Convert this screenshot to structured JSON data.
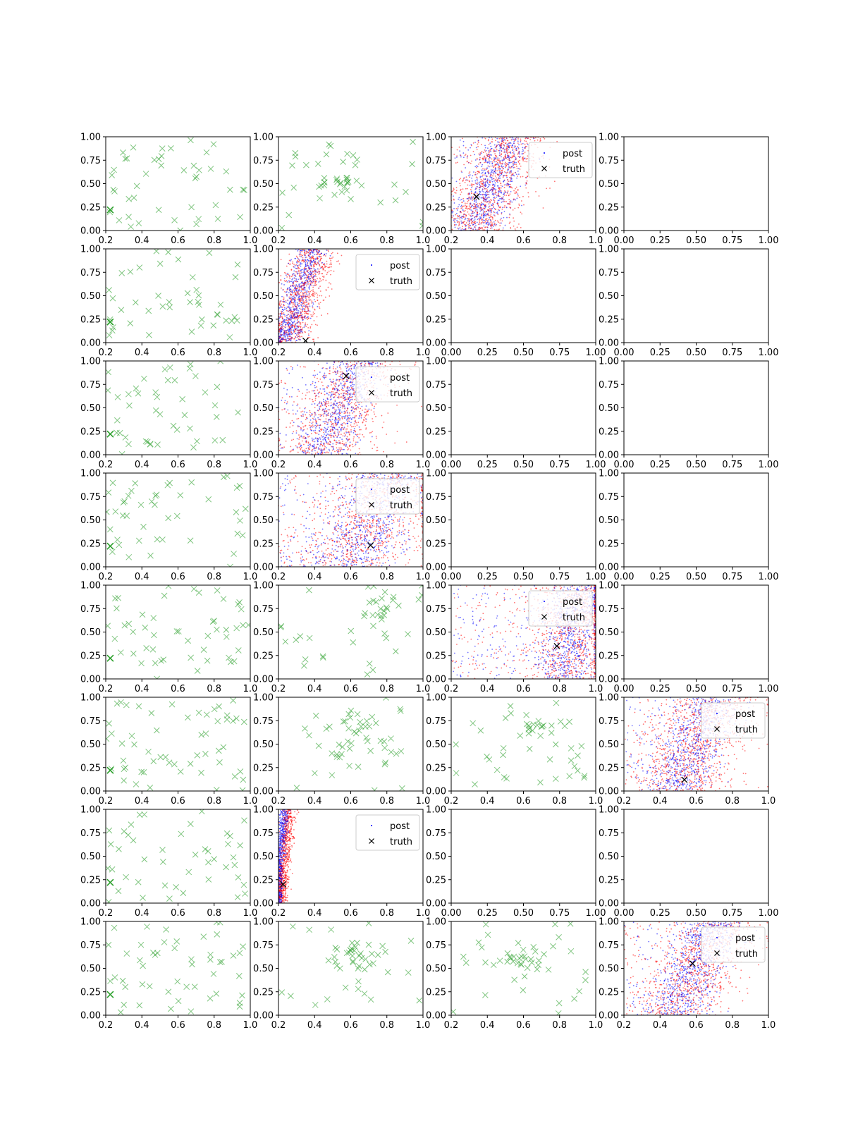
{
  "figure": {
    "rows": 8,
    "cols": 4
  },
  "colors": {
    "scatter": "#2ca02c",
    "post_a": "#ff0000",
    "post_b": "#0000ff",
    "truth": "#000000",
    "axis": "#000000"
  },
  "legend": {
    "labels": [
      "post",
      "truth"
    ]
  },
  "chart_data": [
    {
      "row": 0,
      "col": 0,
      "type": "scatter",
      "kind": "scatter",
      "xlim": [
        0.2,
        1.0
      ],
      "ylim": [
        0,
        1
      ],
      "xticks": [
        "0.2",
        "0.4",
        "0.6",
        "0.8",
        "1.0"
      ],
      "yticks": [
        "0.00",
        "0.25",
        "0.50",
        "0.75",
        "1.00"
      ],
      "seed": 101,
      "n": 45,
      "cluster": null,
      "truth": {
        "x": 0.225,
        "y": 0.22
      }
    },
    {
      "row": 0,
      "col": 1,
      "type": "scatter",
      "kind": "scatter",
      "xlim": [
        0.2,
        1.0
      ],
      "ylim": [
        0,
        1
      ],
      "xticks": [
        "0.2",
        "0.4",
        "0.6",
        "0.8",
        "1.0"
      ],
      "yticks": [
        "0.00",
        "0.25",
        "0.50",
        "0.75",
        "1.00"
      ],
      "seed": 102,
      "n": 50,
      "cluster": {
        "x": 0.52,
        "y": 0.5,
        "sx": 0.06,
        "sy": 0.05,
        "frac": 0.5
      },
      "truth": null
    },
    {
      "row": 0,
      "col": 2,
      "type": "scatter",
      "kind": "posterior",
      "xlim": [
        0.2,
        1.0
      ],
      "ylim": [
        0,
        1
      ],
      "xticks": [
        "0.2",
        "0.4",
        "0.6",
        "0.8",
        "1.0"
      ],
      "yticks": [
        "0.00",
        "0.25",
        "0.50",
        "0.75",
        "1.00"
      ],
      "seed": 103,
      "n": 1600,
      "band": {
        "base": 0.44,
        "slope": 0.2,
        "spread": 0.16,
        "outlier": 0.1
      },
      "truth": {
        "x": 0.34,
        "y": 0.36
      },
      "legend": "upper-right"
    },
    {
      "row": 0,
      "col": 3,
      "type": "scatter",
      "kind": "empty",
      "xlim": [
        0,
        1
      ],
      "ylim": [
        0,
        1
      ],
      "xticks": [
        "0.00",
        "0.25",
        "0.50",
        "0.75",
        "1.00"
      ],
      "yticks": [
        "0.00",
        "0.25",
        "0.50",
        "0.75",
        "1.00"
      ]
    },
    {
      "row": 1,
      "col": 0,
      "type": "scatter",
      "kind": "scatter",
      "xlim": [
        0.2,
        1.0
      ],
      "ylim": [
        0,
        1
      ],
      "xticks": [
        "0.2",
        "0.4",
        "0.6",
        "0.8",
        "1.0"
      ],
      "yticks": [
        "0.00",
        "0.25",
        "0.50",
        "0.75",
        "1.00"
      ],
      "seed": 201,
      "n": 45,
      "cluster": null,
      "truth": {
        "x": 0.225,
        "y": 0.22
      }
    },
    {
      "row": 1,
      "col": 1,
      "type": "scatter",
      "kind": "posterior",
      "xlim": [
        0.2,
        1.0
      ],
      "ylim": [
        0,
        1
      ],
      "xticks": [
        "0.2",
        "0.4",
        "0.6",
        "0.8",
        "1.0"
      ],
      "yticks": [
        "0.00",
        "0.25",
        "0.50",
        "0.75",
        "1.00"
      ],
      "seed": 202,
      "n": 1500,
      "band": {
        "base": 0.32,
        "slope": 0.16,
        "spread": 0.1,
        "outlier": 0.02
      },
      "truth": {
        "x": 0.35,
        "y": 0.02
      },
      "legend": "upper-right"
    },
    {
      "row": 1,
      "col": 2,
      "type": "scatter",
      "kind": "empty",
      "xlim": [
        0,
        1
      ],
      "ylim": [
        0,
        1
      ],
      "xticks": [
        "0.00",
        "0.25",
        "0.50",
        "0.75",
        "1.00"
      ],
      "yticks": [
        "0.00",
        "0.25",
        "0.50",
        "0.75",
        "1.00"
      ]
    },
    {
      "row": 1,
      "col": 3,
      "type": "scatter",
      "kind": "empty",
      "xlim": [
        0,
        1
      ],
      "ylim": [
        0,
        1
      ],
      "xticks": [
        "0.00",
        "0.25",
        "0.50",
        "0.75",
        "1.00"
      ],
      "yticks": [
        "0.00",
        "0.25",
        "0.50",
        "0.75",
        "1.00"
      ]
    },
    {
      "row": 2,
      "col": 0,
      "type": "scatter",
      "kind": "scatter",
      "xlim": [
        0.2,
        1.0
      ],
      "ylim": [
        0,
        1
      ],
      "xticks": [
        "0.2",
        "0.4",
        "0.6",
        "0.8",
        "1.0"
      ],
      "yticks": [
        "0.00",
        "0.25",
        "0.50",
        "0.75",
        "1.00"
      ],
      "seed": 301,
      "n": 45,
      "cluster": null,
      "truth": {
        "x": 0.225,
        "y": 0.22
      }
    },
    {
      "row": 2,
      "col": 1,
      "type": "scatter",
      "kind": "posterior",
      "xlim": [
        0.2,
        1.0
      ],
      "ylim": [
        0,
        1
      ],
      "xticks": [
        "0.2",
        "0.4",
        "0.6",
        "0.8",
        "1.0"
      ],
      "yticks": [
        "0.00",
        "0.25",
        "0.50",
        "0.75",
        "1.00"
      ],
      "seed": 302,
      "n": 1500,
      "band": {
        "base": 0.55,
        "slope": 0.2,
        "spread": 0.2,
        "outlier": 0.12
      },
      "truth": {
        "x": 0.575,
        "y": 0.84
      },
      "legend": "upper-right"
    },
    {
      "row": 2,
      "col": 2,
      "type": "scatter",
      "kind": "empty",
      "xlim": [
        0,
        1
      ],
      "ylim": [
        0,
        1
      ],
      "xticks": [
        "0.00",
        "0.25",
        "0.50",
        "0.75",
        "1.00"
      ],
      "yticks": [
        "0.00",
        "0.25",
        "0.50",
        "0.75",
        "1.00"
      ]
    },
    {
      "row": 2,
      "col": 3,
      "type": "scatter",
      "kind": "empty",
      "xlim": [
        0,
        1
      ],
      "ylim": [
        0,
        1
      ],
      "xticks": [
        "0.00",
        "0.25",
        "0.50",
        "0.75",
        "1.00"
      ],
      "yticks": [
        "0.00",
        "0.25",
        "0.50",
        "0.75",
        "1.00"
      ]
    },
    {
      "row": 3,
      "col": 0,
      "type": "scatter",
      "kind": "scatter",
      "xlim": [
        0.2,
        1.0
      ],
      "ylim": [
        0,
        1
      ],
      "xticks": [
        "0.2",
        "0.4",
        "0.6",
        "0.8",
        "1.0"
      ],
      "yticks": [
        "0.00",
        "0.25",
        "0.50",
        "0.75",
        "1.00"
      ],
      "seed": 401,
      "n": 45,
      "cluster": null,
      "truth": {
        "x": 0.225,
        "y": 0.22
      }
    },
    {
      "row": 3,
      "col": 1,
      "type": "scatter",
      "kind": "posterior",
      "xlim": [
        0.2,
        1.0
      ],
      "ylim": [
        0,
        1
      ],
      "xticks": [
        "0.2",
        "0.4",
        "0.6",
        "0.8",
        "1.0"
      ],
      "yticks": [
        "0.00",
        "0.25",
        "0.50",
        "0.75",
        "1.00"
      ],
      "seed": 402,
      "n": 1600,
      "band": {
        "base": 0.72,
        "slope": 0.22,
        "spread": 0.26,
        "outlier": 0.18
      },
      "truth": {
        "x": 0.71,
        "y": 0.23
      },
      "legend": "upper-right"
    },
    {
      "row": 3,
      "col": 2,
      "type": "scatter",
      "kind": "empty",
      "xlim": [
        0,
        1
      ],
      "ylim": [
        0,
        1
      ],
      "xticks": [
        "0.00",
        "0.25",
        "0.50",
        "0.75",
        "1.00"
      ],
      "yticks": [
        "0.00",
        "0.25",
        "0.50",
        "0.75",
        "1.00"
      ]
    },
    {
      "row": 3,
      "col": 3,
      "type": "scatter",
      "kind": "empty",
      "xlim": [
        0,
        1
      ],
      "ylim": [
        0,
        1
      ],
      "xticks": [
        "0.00",
        "0.25",
        "0.50",
        "0.75",
        "1.00"
      ],
      "yticks": [
        "0.00",
        "0.25",
        "0.50",
        "0.75",
        "1.00"
      ]
    },
    {
      "row": 4,
      "col": 0,
      "type": "scatter",
      "kind": "scatter",
      "xlim": [
        0.2,
        1.0
      ],
      "ylim": [
        0,
        1
      ],
      "xticks": [
        "0.2",
        "0.4",
        "0.6",
        "0.8",
        "1.0"
      ],
      "yticks": [
        "0.00",
        "0.25",
        "0.50",
        "0.75",
        "1.00"
      ],
      "seed": 501,
      "n": 50,
      "cluster": null,
      "truth": {
        "x": 0.225,
        "y": 0.22
      }
    },
    {
      "row": 4,
      "col": 1,
      "type": "scatter",
      "kind": "scatter",
      "xlim": [
        0.2,
        1.0
      ],
      "ylim": [
        0,
        1
      ],
      "xticks": [
        "0.2",
        "0.4",
        "0.6",
        "0.8",
        "1.0"
      ],
      "yticks": [
        "0.00",
        "0.25",
        "0.50",
        "0.75",
        "1.00"
      ],
      "seed": 502,
      "n": 45,
      "cluster": {
        "x": 0.8,
        "y": 0.75,
        "sx": 0.08,
        "sy": 0.12,
        "frac": 0.4
      },
      "truth": null
    },
    {
      "row": 4,
      "col": 2,
      "type": "scatter",
      "kind": "posterior",
      "xlim": [
        0.2,
        1.0
      ],
      "ylim": [
        0,
        1
      ],
      "xticks": [
        "0.2",
        "0.4",
        "0.6",
        "0.8",
        "1.0"
      ],
      "yticks": [
        "0.00",
        "0.25",
        "0.50",
        "0.75",
        "1.00"
      ],
      "seed": 503,
      "n": 1700,
      "band": {
        "base": 0.88,
        "slope": 0.08,
        "spread": 0.2,
        "outlier": 0.2
      },
      "truth": {
        "x": 0.785,
        "y": 0.35
      },
      "legend": "upper-right"
    },
    {
      "row": 4,
      "col": 3,
      "type": "scatter",
      "kind": "empty",
      "xlim": [
        0,
        1
      ],
      "ylim": [
        0,
        1
      ],
      "xticks": [
        "0.00",
        "0.25",
        "0.50",
        "0.75",
        "1.00"
      ],
      "yticks": [
        "0.00",
        "0.25",
        "0.50",
        "0.75",
        "1.00"
      ]
    },
    {
      "row": 5,
      "col": 0,
      "type": "scatter",
      "kind": "scatter",
      "xlim": [
        0.2,
        1.0
      ],
      "ylim": [
        0,
        1
      ],
      "xticks": [
        "0.2",
        "0.4",
        "0.6",
        "0.8",
        "1.0"
      ],
      "yticks": [
        "0.00",
        "0.25",
        "0.50",
        "0.75",
        "1.00"
      ],
      "seed": 601,
      "n": 55,
      "cluster": null,
      "truth": {
        "x": 0.225,
        "y": 0.22
      }
    },
    {
      "row": 5,
      "col": 1,
      "type": "scatter",
      "kind": "scatter",
      "xlim": [
        0.2,
        1.0
      ],
      "ylim": [
        0,
        1
      ],
      "xticks": [
        "0.2",
        "0.4",
        "0.6",
        "0.8",
        "1.0"
      ],
      "yticks": [
        "0.00",
        "0.25",
        "0.50",
        "0.75",
        "1.00"
      ],
      "seed": 602,
      "n": 55,
      "cluster": {
        "x": 0.66,
        "y": 0.66,
        "sx": 0.08,
        "sy": 0.12,
        "frac": 0.5
      },
      "truth": null
    },
    {
      "row": 5,
      "col": 2,
      "type": "scatter",
      "kind": "scatter",
      "xlim": [
        0.2,
        1.0
      ],
      "ylim": [
        0,
        1
      ],
      "xticks": [
        "0.2",
        "0.4",
        "0.6",
        "0.8",
        "1.0"
      ],
      "yticks": [
        "0.00",
        "0.25",
        "0.50",
        "0.75",
        "1.00"
      ],
      "seed": 603,
      "n": 50,
      "cluster": {
        "x": 0.7,
        "y": 0.7,
        "sx": 0.08,
        "sy": 0.1,
        "frac": 0.45
      },
      "truth": null
    },
    {
      "row": 5,
      "col": 3,
      "type": "scatter",
      "kind": "posterior",
      "xlim": [
        0.2,
        1.0
      ],
      "ylim": [
        0,
        1
      ],
      "xticks": [
        "0.2",
        "0.4",
        "0.6",
        "0.8",
        "1.0"
      ],
      "yticks": [
        "0.00",
        "0.25",
        "0.50",
        "0.75",
        "1.00"
      ],
      "seed": 604,
      "n": 1700,
      "band": {
        "base": 0.6,
        "slope": 0.2,
        "spread": 0.22,
        "outlier": 0.14
      },
      "truth": {
        "x": 0.535,
        "y": 0.12
      },
      "legend": "upper-right"
    },
    {
      "row": 6,
      "col": 0,
      "type": "scatter",
      "kind": "scatter",
      "xlim": [
        0.2,
        1.0
      ],
      "ylim": [
        0,
        1
      ],
      "xticks": [
        "0.2",
        "0.4",
        "0.6",
        "0.8",
        "1.0"
      ],
      "yticks": [
        "0.00",
        "0.25",
        "0.50",
        "0.75",
        "1.00"
      ],
      "seed": 701,
      "n": 45,
      "cluster": null,
      "truth": {
        "x": 0.225,
        "y": 0.22
      }
    },
    {
      "row": 6,
      "col": 1,
      "type": "scatter",
      "kind": "posterior",
      "xlim": [
        0.2,
        1.0
      ],
      "ylim": [
        0,
        1
      ],
      "xticks": [
        "0.2",
        "0.4",
        "0.6",
        "0.8",
        "1.0"
      ],
      "yticks": [
        "0.00",
        "0.25",
        "0.50",
        "0.75",
        "1.00"
      ],
      "seed": 702,
      "n": 1200,
      "band": {
        "base": 0.22,
        "slope": 0.05,
        "spread": 0.03,
        "outlier": 0.0
      },
      "truth": {
        "x": 0.225,
        "y": 0.2
      },
      "legend": "upper-right"
    },
    {
      "row": 6,
      "col": 2,
      "type": "scatter",
      "kind": "empty",
      "xlim": [
        0,
        1
      ],
      "ylim": [
        0,
        1
      ],
      "xticks": [
        "0.00",
        "0.25",
        "0.50",
        "0.75",
        "1.00"
      ],
      "yticks": [
        "0.00",
        "0.25",
        "0.50",
        "0.75",
        "1.00"
      ]
    },
    {
      "row": 6,
      "col": 3,
      "type": "scatter",
      "kind": "empty",
      "xlim": [
        0,
        1
      ],
      "ylim": [
        0,
        1
      ],
      "xticks": [
        "0.00",
        "0.25",
        "0.50",
        "0.75",
        "1.00"
      ],
      "yticks": [
        "0.00",
        "0.25",
        "0.50",
        "0.75",
        "1.00"
      ]
    },
    {
      "row": 7,
      "col": 0,
      "type": "scatter",
      "kind": "scatter",
      "xlim": [
        0.2,
        1.0
      ],
      "ylim": [
        0,
        1
      ],
      "xticks": [
        "0.2",
        "0.4",
        "0.6",
        "0.8",
        "1.0"
      ],
      "yticks": [
        "0.00",
        "0.25",
        "0.50",
        "0.75",
        "1.00"
      ],
      "seed": 801,
      "n": 50,
      "cluster": null,
      "truth": {
        "x": 0.225,
        "y": 0.22
      }
    },
    {
      "row": 7,
      "col": 1,
      "type": "scatter",
      "kind": "scatter",
      "xlim": [
        0.2,
        1.0
      ],
      "ylim": [
        0,
        1
      ],
      "xticks": [
        "0.2",
        "0.4",
        "0.6",
        "0.8",
        "1.0"
      ],
      "yticks": [
        "0.00",
        "0.25",
        "0.50",
        "0.75",
        "1.00"
      ],
      "seed": 802,
      "n": 50,
      "cluster": {
        "x": 0.66,
        "y": 0.62,
        "sx": 0.08,
        "sy": 0.08,
        "frac": 0.55
      },
      "truth": null
    },
    {
      "row": 7,
      "col": 2,
      "type": "scatter",
      "kind": "scatter",
      "xlim": [
        0.2,
        1.0
      ],
      "ylim": [
        0,
        1
      ],
      "xticks": [
        "0.2",
        "0.4",
        "0.6",
        "0.8",
        "1.0"
      ],
      "yticks": [
        "0.00",
        "0.25",
        "0.50",
        "0.75",
        "1.00"
      ],
      "seed": 803,
      "n": 50,
      "cluster": {
        "x": 0.62,
        "y": 0.6,
        "sx": 0.08,
        "sy": 0.08,
        "frac": 0.55
      },
      "truth": null
    },
    {
      "row": 7,
      "col": 3,
      "type": "scatter",
      "kind": "posterior",
      "xlim": [
        0.2,
        1.0
      ],
      "ylim": [
        0,
        1
      ],
      "xticks": [
        "0.2",
        "0.4",
        "0.6",
        "0.8",
        "1.0"
      ],
      "yticks": [
        "0.00",
        "0.25",
        "0.50",
        "0.75",
        "1.00"
      ],
      "seed": 804,
      "n": 1700,
      "band": {
        "base": 0.6,
        "slope": 0.22,
        "spread": 0.2,
        "outlier": 0.14
      },
      "truth": {
        "x": 0.58,
        "y": 0.55
      },
      "legend": "upper-right"
    }
  ]
}
